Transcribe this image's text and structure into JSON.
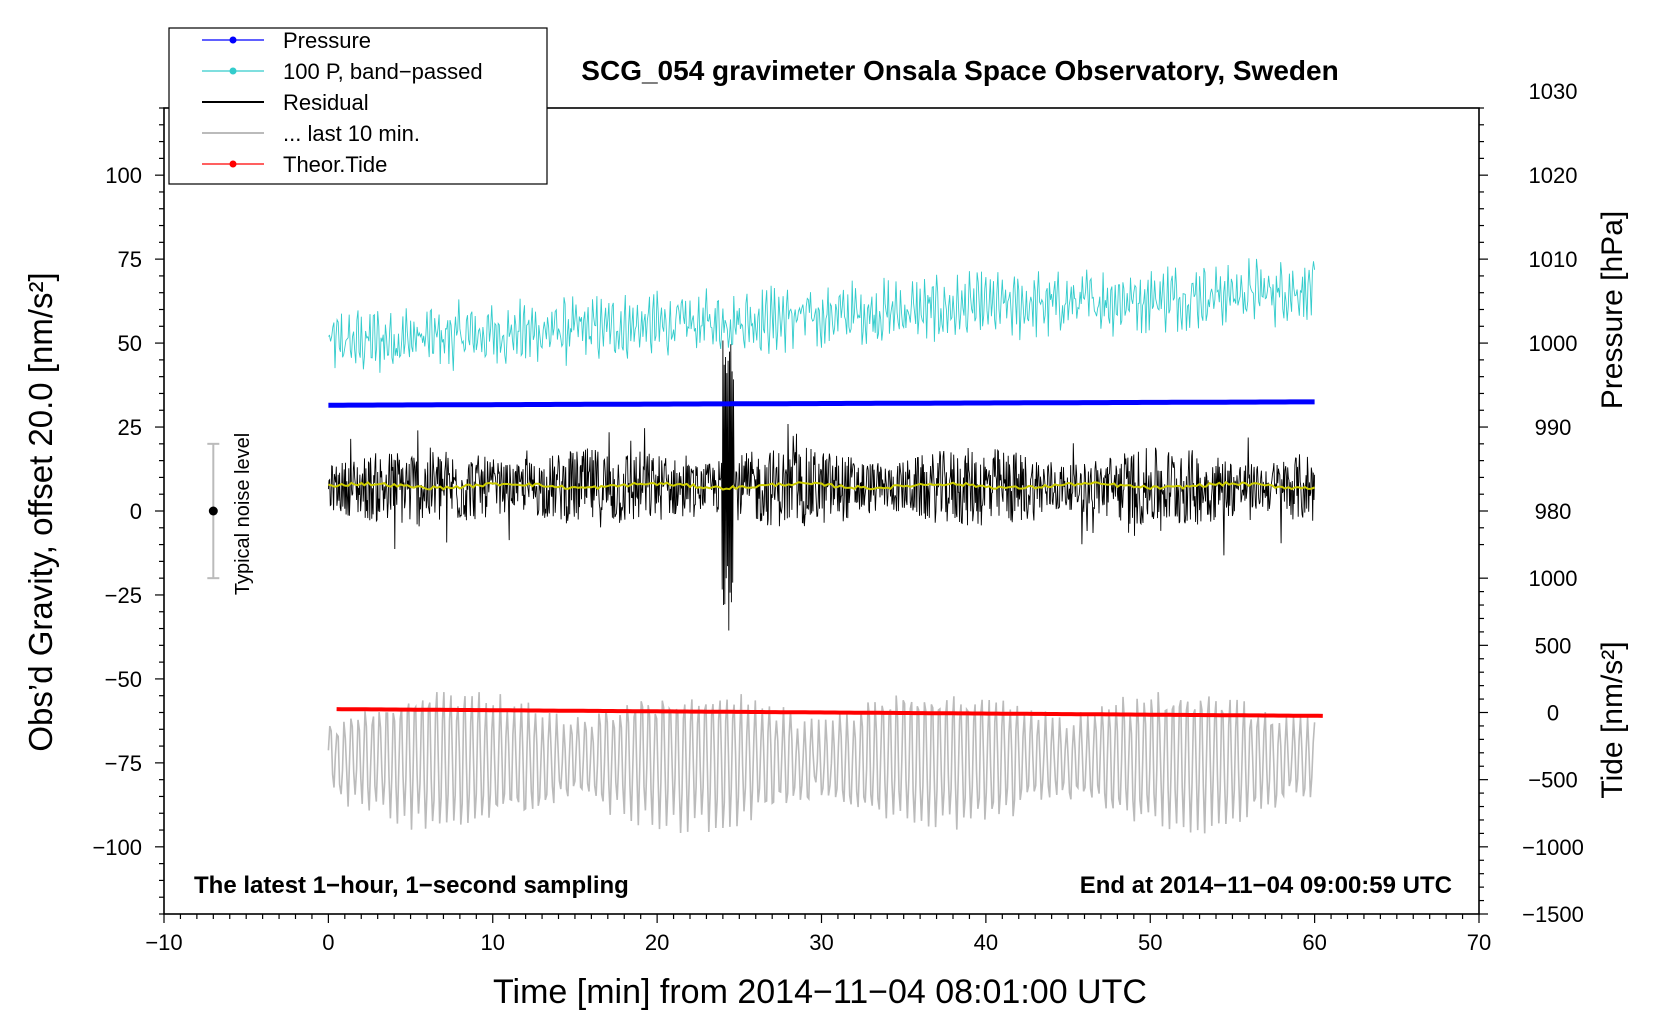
{
  "chart_data": {
    "type": "line",
    "title": "SCG_054 gravimeter Onsala Space Observatory, Sweden",
    "xlabel": "Time [min] from 2014−11−04 08:01:00 UTC",
    "ylabel_main": "Obs’d Gravity, offset 20.0 [nm/s²]",
    "ylabel_pressure": "Pressure [hPa]",
    "ylabel_tide": "Tide [nm/s²]",
    "xlim": [
      -10,
      70
    ],
    "ylim": [
      -120,
      120
    ],
    "x_ticks": [
      "−10",
      "0",
      "10",
      "20",
      "30",
      "40",
      "50",
      "60",
      "70"
    ],
    "x_tick_values": [
      -10,
      0,
      10,
      20,
      30,
      40,
      50,
      60,
      70
    ],
    "y_ticks": [
      "100",
      "75",
      "50",
      "25",
      "0",
      "−25",
      "−50",
      "−75",
      "−100"
    ],
    "y_tick_values": [
      100,
      75,
      50,
      25,
      0,
      -25,
      -50,
      -75,
      -100
    ],
    "pressure_axis": {
      "ticks": [
        "1030",
        "1020",
        "1010",
        "1000",
        "990",
        "980"
      ],
      "values": [
        1030,
        1020,
        1010,
        1000,
        990,
        980
      ],
      "ref_value": 1000,
      "ref_gravity": 50,
      "hpa_per_25": 10
    },
    "tide_axis": {
      "ticks": [
        "1000",
        "500",
        "0",
        "−500",
        "−1000",
        "−1500"
      ],
      "values": [
        1000,
        500,
        0,
        -500,
        -1000,
        -1500
      ],
      "ref_value": 0,
      "ref_gravity": -60,
      "nm_per_20": 500
    },
    "legend": {
      "position": "top-left",
      "entries": [
        "Pressure",
        "100 P, band−passed",
        "Residual",
        "... last 10 min.",
        "Theor.Tide"
      ]
    },
    "annotations": {
      "noise": "Typical noise level",
      "bottom_left": "The latest 1−hour, 1−second sampling",
      "bottom_right": "End at 2014−11−04 09:00:59 UTC"
    },
    "noise_bar": {
      "x": -7,
      "center": 0,
      "half_range": 20
    },
    "series": [
      {
        "name": "Pressure",
        "color": "#0000ff",
        "x_range": [
          0,
          60
        ],
        "gravity_level": [
          31.5,
          32.5
        ]
      },
      {
        "name": "100 P, band−passed",
        "color": "#33cccc",
        "x_range": [
          0,
          60
        ],
        "mean_start": 50,
        "mean_end": 66,
        "amplitude": 8
      },
      {
        "name": "Residual",
        "color": "#000000",
        "x_range": [
          0,
          60
        ],
        "mean": 7,
        "amplitude": 12,
        "burst_at": 24.3,
        "burst_range": [
          -36,
          57
        ]
      },
      {
        "name": "Residual smoothed",
        "color": "#cccc00",
        "x_range": [
          0,
          60
        ],
        "mean": 7.5
      },
      {
        "name": "... last 10 min.",
        "color": "#bbbbbb",
        "x_range": [
          0,
          60
        ],
        "mean": -74,
        "amplitude": 15
      },
      {
        "name": "Theor.Tide",
        "color": "#ff0000",
        "x_range": [
          0.5,
          60.5
        ],
        "gravity_start": -59,
        "gravity_end": -61
      }
    ]
  }
}
